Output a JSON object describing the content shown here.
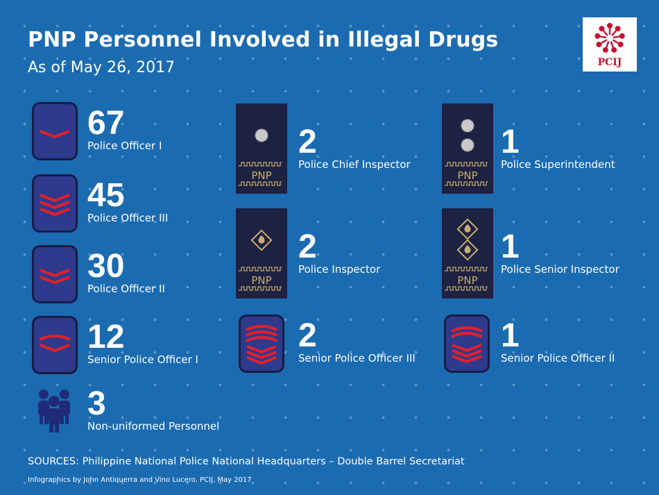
{
  "header": {
    "title": "PNP Personnel Involved in Illegal Drugs",
    "subtitle": "As of May 26, 2017"
  },
  "logo": {
    "text": "PCIJ",
    "icon": "pcij-logo-icon"
  },
  "colors": {
    "background": "#1b6bb1",
    "badge_blue": "#2e3a8c",
    "board_navy": "#1d2142",
    "chevron_red": "#e3202a",
    "insignia_gold": "#c8ae6e",
    "logo_red": "#c8102e"
  },
  "stats": [
    {
      "id": "po1",
      "count": "67",
      "rank": "Police Officer I",
      "icon": "rank-chevron-1-icon"
    },
    {
      "id": "po3",
      "count": "45",
      "rank": "Police Officer III",
      "icon": "rank-chevron-3-icon"
    },
    {
      "id": "po2",
      "count": "30",
      "rank": "Police Officer II",
      "icon": "rank-chevron-2-icon"
    },
    {
      "id": "spo1",
      "count": "12",
      "rank": "Senior Police Officer I",
      "icon": "rank-chevron-arc-icon"
    },
    {
      "id": "nup",
      "count": "3",
      "rank": "Non-uniformed Personnel",
      "icon": "people-group-icon"
    },
    {
      "id": "pci",
      "count": "2",
      "rank": "Police Chief Inspector",
      "icon": "shoulder-board-one-sun-icon"
    },
    {
      "id": "pinsp",
      "count": "2",
      "rank": "Police Inspector",
      "icon": "shoulder-board-one-triangle-icon"
    },
    {
      "id": "spo3",
      "count": "2",
      "rank": "Senior Police Officer III",
      "icon": "rank-chevron-arc-3-icon"
    },
    {
      "id": "psupt",
      "count": "1",
      "rank": "Police Superintendent",
      "icon": "shoulder-board-two-sun-icon"
    },
    {
      "id": "psinsp",
      "count": "1",
      "rank": "Police Senior Inspector",
      "icon": "shoulder-board-two-triangle-icon"
    },
    {
      "id": "spo2",
      "count": "1",
      "rank": "Senior Police Officer II",
      "icon": "rank-chevron-arc-2-icon"
    }
  ],
  "board_label": "PNP",
  "footer": {
    "sources": "SOURCES: Philippine National Police National Headquarters – Double Barrel Secretariat",
    "credits": "Infographics by John Antiquerra and Vino Lucero, PCIJ, May 2017"
  }
}
